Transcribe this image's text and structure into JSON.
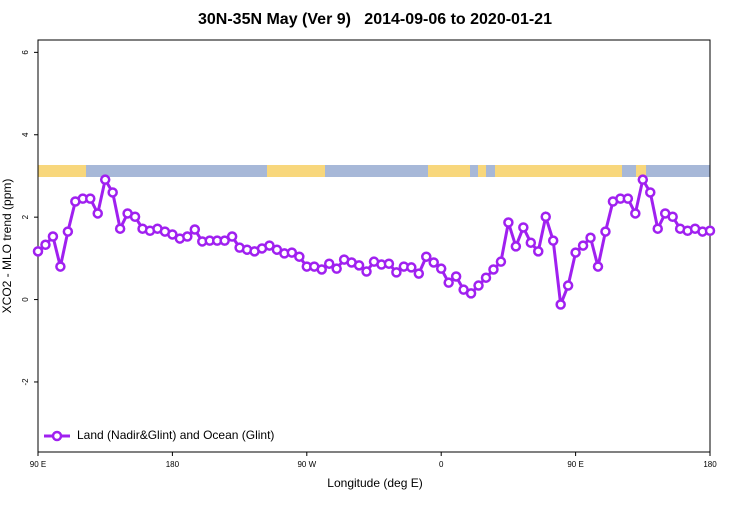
{
  "chart_data": {
    "type": "line",
    "title": "30N-35N May (Ver 9)   2014-09-06 to 2020-01-21",
    "xlabel": "Longitude (deg E)",
    "ylabel": "XCO2 - MLO trend (ppm)",
    "xlim": [
      90,
      540
    ],
    "xticks": [
      {
        "value": 90,
        "label": "90 E"
      },
      {
        "value": 180,
        "label": "180"
      },
      {
        "value": 270,
        "label": "90 W"
      },
      {
        "value": 360,
        "label": "0"
      },
      {
        "value": 450,
        "label": "90 E"
      },
      {
        "value": 540,
        "label": "180"
      }
    ],
    "ylim": [
      -3.7,
      6.3
    ],
    "yticks": [
      -2,
      0,
      2,
      4,
      6
    ],
    "legend": "bottom-left",
    "x": [
      90,
      95,
      100,
      105,
      110,
      115,
      120,
      125,
      130,
      135,
      140,
      145,
      150,
      155,
      160,
      165,
      170,
      175,
      180,
      185,
      190,
      195,
      200,
      205,
      210,
      215,
      220,
      225,
      230,
      235,
      240,
      245,
      250,
      255,
      260,
      265,
      270,
      275,
      280,
      285,
      290,
      295,
      300,
      305,
      310,
      315,
      320,
      325,
      330,
      335,
      340,
      345,
      350,
      355,
      360,
      365,
      370,
      375,
      380,
      385,
      390,
      395,
      400,
      405,
      410,
      415,
      420,
      425,
      430,
      435,
      440,
      445,
      450,
      455,
      460,
      465,
      470,
      475,
      480,
      485,
      490,
      495,
      500,
      505,
      510,
      515,
      520,
      525,
      530,
      535,
      540
    ],
    "series": [
      {
        "name": "Land (Nadir&Glint) and Ocean (Glint)",
        "color": "#a020f0",
        "values": [
          1.17,
          1.33,
          1.53,
          0.8,
          1.65,
          2.38,
          2.45,
          2.45,
          2.09,
          2.91,
          2.6,
          1.72,
          2.09,
          2.01,
          1.72,
          1.67,
          1.72,
          1.65,
          1.58,
          1.48,
          1.53,
          1.7,
          1.41,
          1.43,
          1.43,
          1.43,
          1.53,
          1.26,
          1.21,
          1.17,
          1.24,
          1.31,
          1.21,
          1.12,
          1.14,
          1.04,
          0.8,
          0.8,
          0.73,
          0.87,
          0.75,
          0.97,
          0.9,
          0.83,
          0.68,
          0.92,
          0.85,
          0.87,
          0.66,
          0.8,
          0.78,
          0.63,
          1.04,
          0.9,
          0.75,
          0.41,
          0.56,
          0.24,
          0.15,
          0.34,
          0.53,
          0.73,
          0.92,
          1.87,
          1.29,
          1.75,
          1.38,
          1.17,
          2.01,
          1.43,
          -0.12,
          0.34,
          1.14,
          1.31,
          1.5,
          0.8,
          1.65,
          2.38,
          2.45,
          2.45,
          2.09,
          2.91,
          2.6,
          1.72,
          2.09,
          2.01,
          1.72,
          1.67,
          1.72,
          1.65,
          1.67
        ]
      }
    ]
  }
}
